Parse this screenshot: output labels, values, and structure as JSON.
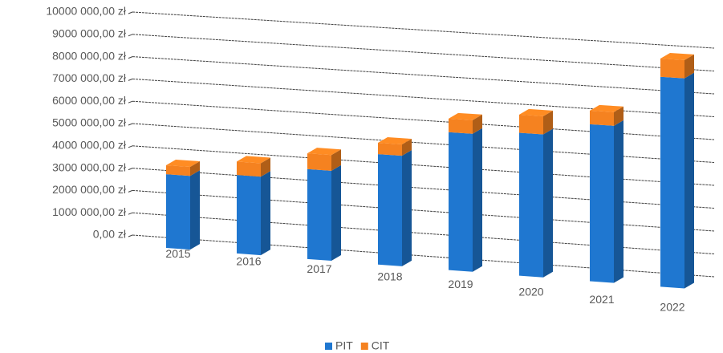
{
  "chart_data": {
    "type": "bar3d",
    "stacked": true,
    "categories": [
      "2015",
      "2016",
      "2017",
      "2018",
      "2019",
      "2020",
      "2021",
      "2022"
    ],
    "series": [
      {
        "name": "PIT",
        "color": "#1f77d0",
        "values": [
          3300000,
          3500000,
          4000000,
          4900000,
          6100000,
          6300000,
          6900000,
          9200000
        ]
      },
      {
        "name": "CIT",
        "color": "#f58220",
        "values": [
          400000,
          600000,
          700000,
          500000,
          600000,
          800000,
          600000,
          800000
        ]
      }
    ],
    "ylim": [
      0,
      10000000
    ],
    "yticks": [
      {
        "value": 0,
        "label": "0,00 zł"
      },
      {
        "value": 1000000,
        "label": "1000 000,00 zł"
      },
      {
        "value": 2000000,
        "label": "2000 000,00 zł"
      },
      {
        "value": 3000000,
        "label": "3000 000,00 zł"
      },
      {
        "value": 4000000,
        "label": "4000 000,00 zł"
      },
      {
        "value": 5000000,
        "label": "5000 000,00 zł"
      },
      {
        "value": 6000000,
        "label": "6000 000,00 zł"
      },
      {
        "value": 7000000,
        "label": "7000 000,00 zł"
      },
      {
        "value": 8000000,
        "label": "8000 000,00 zł"
      },
      {
        "value": 9000000,
        "label": "9000 000,00 zł"
      },
      {
        "value": 10000000,
        "label": "10000 000,00 zł"
      }
    ],
    "grid": true,
    "legend": "bottom"
  }
}
